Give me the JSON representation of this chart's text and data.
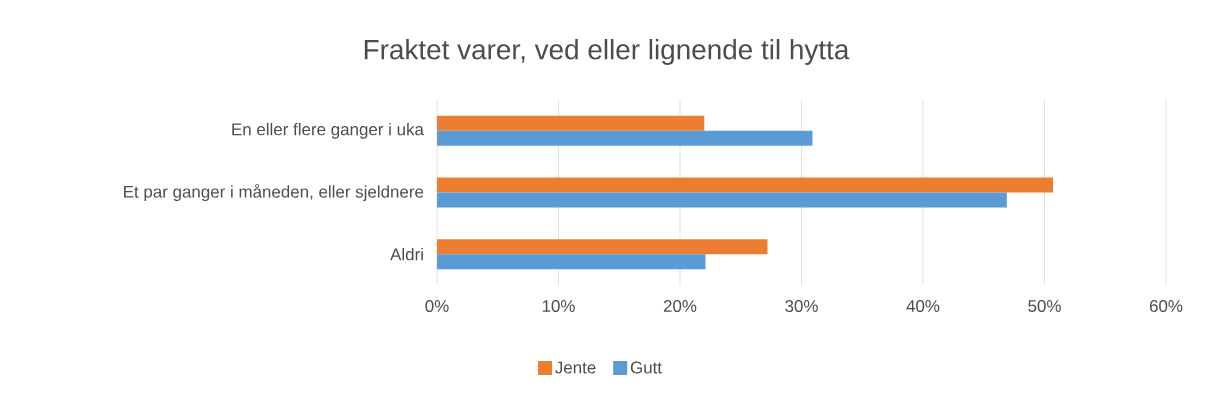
{
  "chart_data": {
    "type": "bar",
    "orientation": "horizontal",
    "title": "Fraktet varer, ved eller lignende til hytta",
    "categories": [
      "En eller flere ganger i uka",
      "Et par ganger i måneden, eller sjeldnere",
      "Aldri"
    ],
    "series": [
      {
        "name": "Jente",
        "color": "#ed7d31",
        "values": [
          22.0,
          50.7,
          27.2
        ]
      },
      {
        "name": "Gutt",
        "color": "#5b9bd5",
        "values": [
          30.9,
          46.9,
          22.1
        ]
      }
    ],
    "xlim": [
      0,
      60
    ],
    "xticks": [
      {
        "value": 0,
        "label": "0%"
      },
      {
        "value": 10,
        "label": "10%"
      },
      {
        "value": 20,
        "label": "20%"
      },
      {
        "value": 30,
        "label": "30%"
      },
      {
        "value": 40,
        "label": "40%"
      },
      {
        "value": 50,
        "label": "50%"
      },
      {
        "value": 60,
        "label": "60%"
      }
    ],
    "grid": "x",
    "legend": "bottom"
  }
}
